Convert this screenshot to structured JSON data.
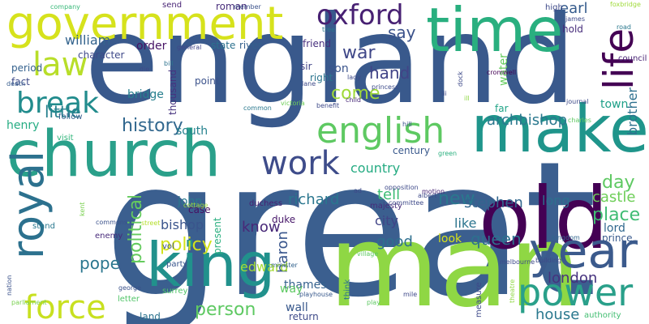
{
  "words": [
    {
      "text": "great",
      "color": "#3b5f8f"
    },
    {
      "text": "england",
      "color": "#39598c"
    },
    {
      "text": "man",
      "color": "#8fd744"
    },
    {
      "text": "church",
      "color": "#2aa08a"
    },
    {
      "text": "make",
      "color": "#1f958b"
    },
    {
      "text": "time",
      "color": "#29af7f"
    },
    {
      "text": "old",
      "color": "#440154"
    },
    {
      "text": "king",
      "color": "#21918c"
    },
    {
      "text": "government",
      "color": "#d6e21c"
    },
    {
      "text": "year",
      "color": "#3b5a8c"
    },
    {
      "text": "life",
      "color": "#440154"
    },
    {
      "text": "royal",
      "color": "#2c718e"
    },
    {
      "text": "force",
      "color": "#c8e020"
    },
    {
      "text": "power",
      "color": "#2aa08a"
    },
    {
      "text": "english",
      "color": "#5ec962"
    },
    {
      "text": "oxford",
      "color": "#482173"
    },
    {
      "text": "work",
      "color": "#3e4c8a"
    },
    {
      "text": "law",
      "color": "#b8de29"
    },
    {
      "text": "break",
      "color": "#228c8d"
    },
    {
      "text": "political",
      "color": "#65cb5e"
    },
    {
      "text": "war",
      "color": "#3f4788"
    },
    {
      "text": "history",
      "color": "#31678e"
    },
    {
      "text": "come",
      "color": "#a0da39"
    },
    {
      "text": "say",
      "color": "#3b528b"
    },
    {
      "text": "little",
      "color": "#27808e"
    },
    {
      "text": "hand",
      "color": "#414487"
    },
    {
      "text": "earl",
      "color": "#365c8d"
    },
    {
      "text": "archbishop",
      "color": "#2a788e"
    },
    {
      "text": "new",
      "color": "#2a788e"
    },
    {
      "text": "policy",
      "color": "#d2e21b"
    },
    {
      "text": "place",
      "color": "#3fbc73"
    },
    {
      "text": "day",
      "color": "#5ec962"
    },
    {
      "text": "queen",
      "color": "#2d708e"
    },
    {
      "text": "pope",
      "color": "#2a768e"
    },
    {
      "text": "london",
      "color": "#46327e"
    },
    {
      "text": "person",
      "color": "#5ec962"
    },
    {
      "text": "house",
      "color": "#2a788e"
    },
    {
      "text": "know",
      "color": "#482878"
    },
    {
      "text": "good",
      "color": "#2e6f8e"
    },
    {
      "text": "tell",
      "color": "#3dbc74"
    },
    {
      "text": "richard",
      "color": "#2a768e"
    },
    {
      "text": "stephen",
      "color": "#31668e"
    },
    {
      "text": "castle",
      "color": "#6ece58"
    },
    {
      "text": "william",
      "color": "#33638d"
    },
    {
      "text": "country",
      "color": "#25ab82"
    },
    {
      "text": "son",
      "color": "#3a548c"
    },
    {
      "text": "state",
      "color": "#2c718e"
    },
    {
      "text": "river",
      "color": "#34608d"
    },
    {
      "text": "baron",
      "color": "#39568c"
    },
    {
      "text": "edward",
      "color": "#a5db36"
    },
    {
      "text": "bishop",
      "color": "#3a548c"
    },
    {
      "text": "long",
      "color": "#2d708e"
    },
    {
      "text": "like",
      "color": "#2b748e"
    },
    {
      "text": "henry",
      "color": "#25ac82"
    },
    {
      "text": "brother",
      "color": "#2d708e"
    },
    {
      "text": "town",
      "color": "#1fa088"
    },
    {
      "text": "order",
      "color": "#471365"
    },
    {
      "text": "bridge",
      "color": "#277f8e"
    },
    {
      "text": "city",
      "color": "#414487"
    },
    {
      "text": "john",
      "color": "#2a788e"
    },
    {
      "text": "look",
      "color": "#d8e219"
    },
    {
      "text": "lord",
      "color": "#31688e"
    },
    {
      "text": "water",
      "color": "#65cb5e"
    },
    {
      "text": "south",
      "color": "#26828e"
    },
    {
      "text": "century",
      "color": "#38588c"
    },
    {
      "text": "right",
      "color": "#2b758e"
    },
    {
      "text": "hold",
      "color": "#472d7b"
    },
    {
      "text": "high",
      "color": "#3e4a89"
    },
    {
      "text": "thames",
      "color": "#34618d"
    },
    {
      "text": "wall",
      "color": "#38588c"
    },
    {
      "text": "case",
      "color": "#471063"
    },
    {
      "text": "point",
      "color": "#3b528b"
    },
    {
      "text": "prince",
      "color": "#38598c"
    },
    {
      "text": "duke",
      "color": "#48186a"
    },
    {
      "text": "far",
      "color": "#20a486"
    },
    {
      "text": "present",
      "color": "#29af7f"
    },
    {
      "text": "sir",
      "color": "#414487"
    },
    {
      "text": "fact",
      "color": "#3e4a89"
    },
    {
      "text": "period",
      "color": "#34618d"
    },
    {
      "text": "character",
      "color": "#3e4989"
    },
    {
      "text": "thousand",
      "color": "#46337f"
    },
    {
      "text": "way",
      "color": "#5ec962"
    },
    {
      "text": "return",
      "color": "#3e4a89"
    },
    {
      "text": "friend",
      "color": "#472f7d"
    },
    {
      "text": "roman",
      "color": "#472c7a"
    },
    {
      "text": "send",
      "color": "#482475"
    },
    {
      "text": "council",
      "color": "#482475"
    },
    {
      "text": "follow",
      "color": "#355f8d"
    },
    {
      "text": "think",
      "color": "#2c718e"
    },
    {
      "text": "vol",
      "color": "#3b528b"
    },
    {
      "text": "majesty",
      "color": "#472c7a"
    },
    {
      "text": "party",
      "color": "#39558c"
    },
    {
      "text": "enemy",
      "color": "#472a7a"
    },
    {
      "text": "land",
      "color": "#2c738e"
    },
    {
      "text": "stand",
      "color": "#2a788e"
    },
    {
      "text": "letter",
      "color": "#52c569"
    },
    {
      "text": "surrey",
      "color": "#52c569"
    },
    {
      "text": "duchess",
      "color": "#482071"
    },
    {
      "text": "authority",
      "color": "#42be71"
    },
    {
      "text": "visit",
      "color": "#30b57a"
    },
    {
      "text": "child",
      "color": "#482878"
    },
    {
      "text": "lady",
      "color": "#3e4a89"
    },
    {
      "text": "princess",
      "color": "#3e4c8a"
    },
    {
      "text": "james",
      "color": "#3e4989"
    },
    {
      "text": "charles",
      "color": "#5ec962"
    },
    {
      "text": "kingdom",
      "color": "#31668e"
    },
    {
      "text": "minister",
      "color": "#33638d"
    },
    {
      "text": "village",
      "color": "#5ec962"
    },
    {
      "text": "albert",
      "color": "#3e4a89"
    },
    {
      "text": "motion",
      "color": "#482576"
    },
    {
      "text": "commons",
      "color": "#3b528b"
    },
    {
      "text": "nation",
      "color": "#3b528b"
    },
    {
      "text": "death",
      "color": "#365c8d"
    },
    {
      "text": "building",
      "color": "#3e4a89"
    },
    {
      "text": "playhouse",
      "color": "#38598c"
    },
    {
      "text": "melbourne",
      "color": "#3e4989"
    },
    {
      "text": "general",
      "color": "#404688"
    },
    {
      "text": "company",
      "color": "#37b878"
    },
    {
      "text": "member",
      "color": "#3b528b"
    },
    {
      "text": "hill",
      "color": "#3b528b"
    },
    {
      "text": "tree",
      "color": "#2a788e"
    },
    {
      "text": "bill",
      "color": "#2c728e"
    },
    {
      "text": "road",
      "color": "#2a788e"
    },
    {
      "text": "victoria",
      "color": "#6ece58"
    },
    {
      "text": "george",
      "color": "#3b528b"
    },
    {
      "text": "cottage",
      "color": "#9fda3a"
    },
    {
      "text": "green",
      "color": "#2bb07f"
    },
    {
      "text": "opposition",
      "color": "#3e4a89"
    },
    {
      "text": "committee",
      "color": "#3e4a89"
    },
    {
      "text": "parliament",
      "color": "#7ad151"
    },
    {
      "text": "measure",
      "color": "#3e4a89"
    },
    {
      "text": "foxbridge",
      "color": "#9fda3a"
    },
    {
      "text": "cromwell",
      "color": "#440154"
    },
    {
      "text": "street",
      "color": "#b5de2b"
    },
    {
      "text": "common",
      "color": "#2a788e"
    },
    {
      "text": "benefit",
      "color": "#3e4a89"
    },
    {
      "text": "theatre",
      "color": "#8fd744"
    },
    {
      "text": "play",
      "color": "#5ec962"
    },
    {
      "text": "kent",
      "color": "#7ad151"
    },
    {
      "text": "mile",
      "color": "#3e4989"
    },
    {
      "text": "journal",
      "color": "#3e4a89"
    },
    {
      "text": "die",
      "color": "#3e4a89"
    },
    {
      "text": "lane",
      "color": "#3e4a89"
    },
    {
      "text": "dock",
      "color": "#3e4a89"
    },
    {
      "text": "ill",
      "color": "#8fd744"
    },
    {
      "text": "iii",
      "color": "#3e4a89"
    },
    {
      "text": "ad",
      "color": "#3e4a89"
    },
    {
      "text": "cap",
      "color": "#3e4a89"
    }
  ]
}
